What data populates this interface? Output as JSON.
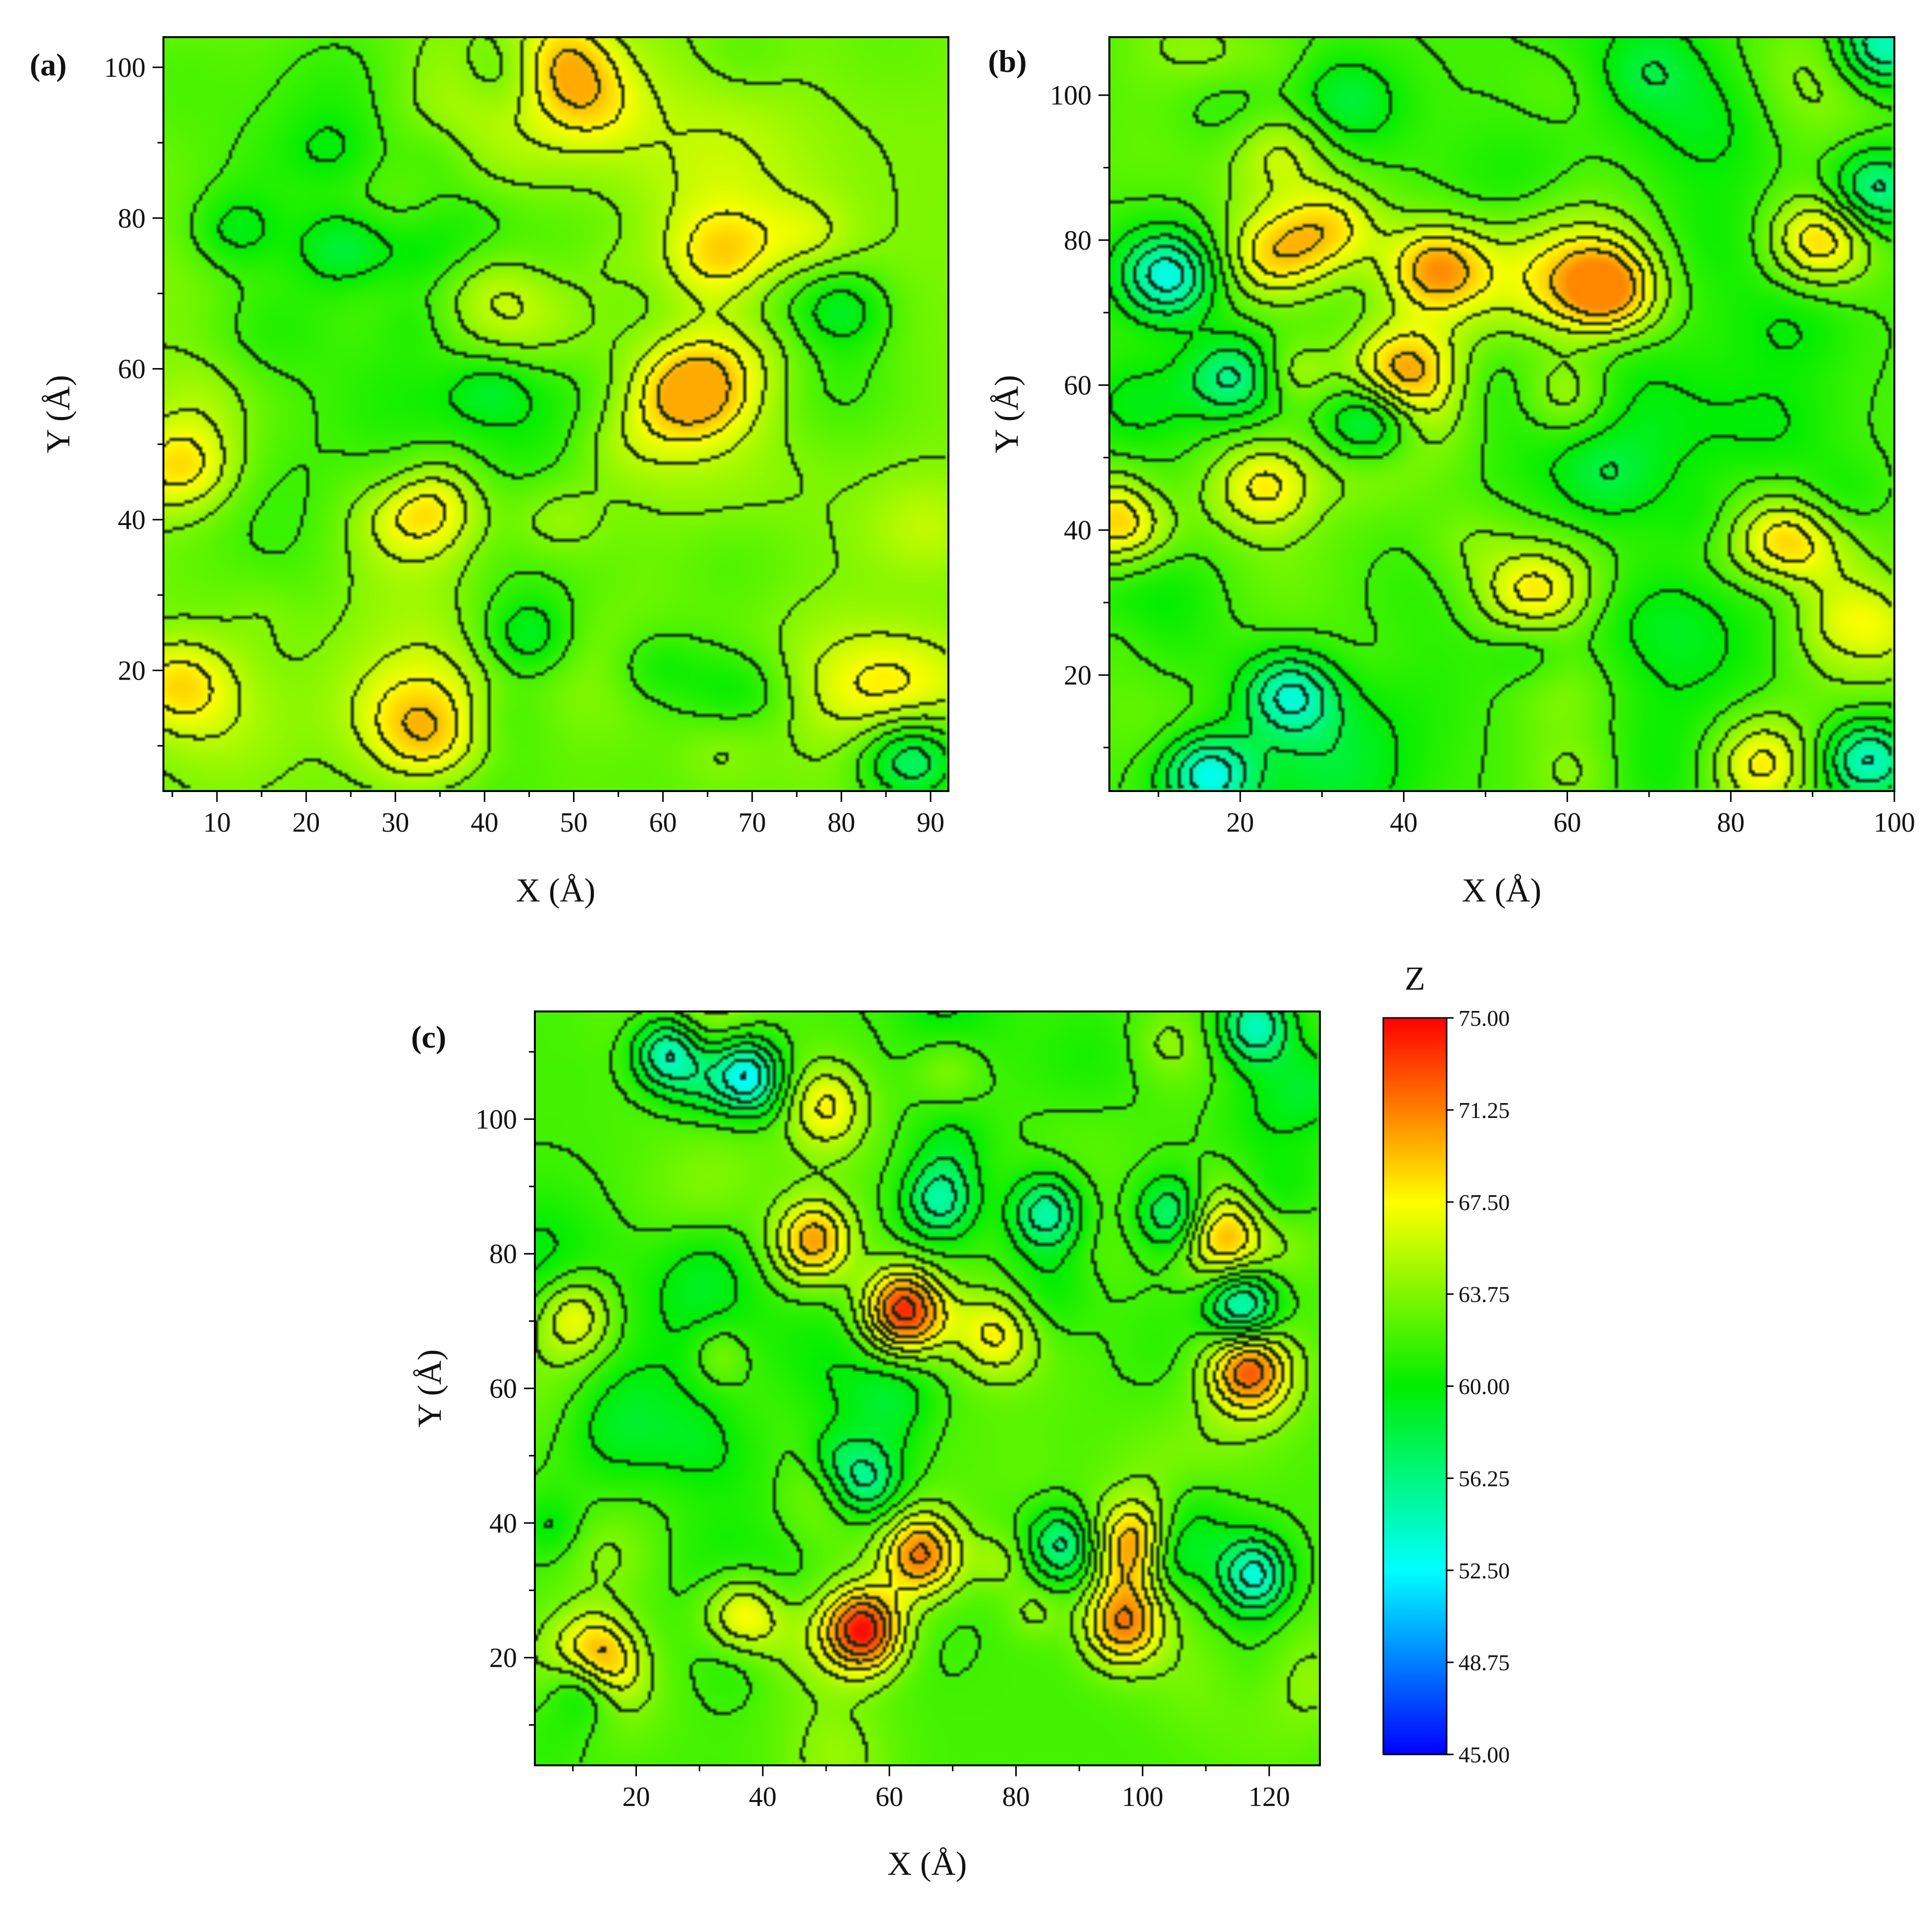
{
  "chart_data": [
    {
      "type": "heatmap",
      "panel_label": "(a)",
      "xlabel": "X (Å)",
      "ylabel": "Y (Å)",
      "xlim": [
        4,
        92
      ],
      "ylim": [
        4,
        104
      ],
      "xticks": [
        10,
        20,
        30,
        40,
        50,
        60,
        70,
        80,
        90
      ],
      "yticks": [
        20,
        40,
        60,
        80,
        100
      ],
      "zrange": [
        57,
        70
      ],
      "z_mean": 63.5,
      "grid": false,
      "peaks": [
        {
          "x": 48,
          "y": 101,
          "z": 69.5
        },
        {
          "x": 6,
          "y": 47,
          "z": 69.0
        },
        {
          "x": 33,
          "y": 42,
          "z": 69.5
        },
        {
          "x": 63,
          "y": 57,
          "z": 69.0
        },
        {
          "x": 5,
          "y": 18,
          "z": 69.0
        },
        {
          "x": 67,
          "y": 75,
          "z": 68.0
        },
        {
          "x": 34,
          "y": 10,
          "z": 67.5
        },
        {
          "x": 52,
          "y": 95,
          "z": 67.0
        },
        {
          "x": 48,
          "y": 40,
          "z": 67.5
        }
      ],
      "valleys": [
        {
          "x": 88,
          "y": 8,
          "z": 56.5
        },
        {
          "x": 24,
          "y": 76,
          "z": 59.0
        },
        {
          "x": 80,
          "y": 68,
          "z": 59.0
        },
        {
          "x": 43,
          "y": 100,
          "z": 59.5
        },
        {
          "x": 45,
          "y": 24,
          "z": 59.0
        }
      ]
    },
    {
      "type": "heatmap",
      "panel_label": "(b)",
      "xlabel": "X (Å)",
      "ylabel": "Y (Å)",
      "xlim": [
        4,
        100
      ],
      "ylim": [
        4,
        108
      ],
      "xticks": [
        20,
        40,
        60,
        80,
        100
      ],
      "yticks": [
        20,
        40,
        60,
        80,
        100
      ],
      "zrange": [
        52,
        71
      ],
      "z_mean": 62.0,
      "grid": false,
      "peaks": [
        {
          "x": 44,
          "y": 76,
          "z": 70.0
        },
        {
          "x": 65,
          "y": 73,
          "z": 69.5
        },
        {
          "x": 91,
          "y": 80,
          "z": 69.0
        },
        {
          "x": 5,
          "y": 41,
          "z": 69.5
        },
        {
          "x": 24,
          "y": 78,
          "z": 68.5
        },
        {
          "x": 31,
          "y": 82,
          "z": 68.0
        },
        {
          "x": 40,
          "y": 62,
          "z": 68.5
        },
        {
          "x": 60,
          "y": 59,
          "z": 67.5
        },
        {
          "x": 87,
          "y": 38,
          "z": 68.0
        },
        {
          "x": 23,
          "y": 46,
          "z": 67.5
        },
        {
          "x": 84,
          "y": 8,
          "z": 67.0
        },
        {
          "x": 25,
          "y": 92,
          "z": 66.5
        },
        {
          "x": 55,
          "y": 31,
          "z": 66.5
        }
      ],
      "valleys": [
        {
          "x": 16,
          "y": 6,
          "z": 53.0
        },
        {
          "x": 11,
          "y": 75,
          "z": 54.0
        },
        {
          "x": 97,
          "y": 8,
          "z": 54.0
        },
        {
          "x": 36,
          "y": 55,
          "z": 55.0
        },
        {
          "x": 26,
          "y": 17,
          "z": 55.0
        },
        {
          "x": 99,
          "y": 107,
          "z": 54.0
        },
        {
          "x": 98,
          "y": 87,
          "z": 55.5
        },
        {
          "x": 19,
          "y": 61,
          "z": 56.0
        }
      ]
    },
    {
      "type": "heatmap",
      "panel_label": "(c)",
      "xlabel": "X (Å)",
      "ylabel": "Y (Å)",
      "xlim": [
        4,
        128
      ],
      "ylim": [
        4,
        116
      ],
      "xticks": [
        20,
        40,
        60,
        80,
        100,
        120
      ],
      "yticks": [
        20,
        40,
        60,
        80,
        100
      ],
      "zrange": [
        51,
        75
      ],
      "z_mean": 62.0,
      "grid": false,
      "peaks": [
        {
          "x": 56,
          "y": 24,
          "z": 74.5
        },
        {
          "x": 100,
          "y": 36,
          "z": 74.5
        },
        {
          "x": 62,
          "y": 72,
          "z": 73.5
        },
        {
          "x": 65,
          "y": 35,
          "z": 72.0
        },
        {
          "x": 97,
          "y": 25,
          "z": 71.5
        },
        {
          "x": 117,
          "y": 63,
          "z": 71.5
        },
        {
          "x": 48,
          "y": 82,
          "z": 70.5
        },
        {
          "x": 13,
          "y": 20,
          "z": 70.0
        },
        {
          "x": 37,
          "y": 26,
          "z": 69.0
        },
        {
          "x": 113,
          "y": 82,
          "z": 69.0
        },
        {
          "x": 10,
          "y": 71,
          "z": 68.5
        },
        {
          "x": 77,
          "y": 68,
          "z": 67.5
        },
        {
          "x": 50,
          "y": 102,
          "z": 67.0
        }
      ],
      "valleys": [
        {
          "x": 25,
          "y": 110,
          "z": 53.0
        },
        {
          "x": 37,
          "y": 107,
          "z": 53.5
        },
        {
          "x": 88,
          "y": 37,
          "z": 54.5
        },
        {
          "x": 118,
          "y": 32,
          "z": 53.5
        },
        {
          "x": 103,
          "y": 35,
          "z": 54.0
        },
        {
          "x": 116,
          "y": 72,
          "z": 53.0
        },
        {
          "x": 85,
          "y": 86,
          "z": 55.0
        },
        {
          "x": 118,
          "y": 114,
          "z": 54.5
        },
        {
          "x": 56,
          "y": 46,
          "z": 55.0
        },
        {
          "x": 12,
          "y": 16,
          "z": 55.5
        },
        {
          "x": 68,
          "y": 88,
          "z": 55.5
        },
        {
          "x": 105,
          "y": 86,
          "z": 56.0
        }
      ]
    }
  ],
  "colorbar": {
    "title": "Z",
    "min": 45.0,
    "max": 75.0,
    "tick_labels": [
      "75.00",
      "71.25",
      "67.50",
      "63.75",
      "60.00",
      "56.25",
      "52.50",
      "48.75",
      "45.00"
    ],
    "colormap": [
      "#0000ff",
      "#00ffff",
      "#00ee00",
      "#ffff00",
      "#ff0000"
    ],
    "colormap_stops": [
      45.0,
      52.5,
      60.0,
      67.5,
      75.0
    ]
  }
}
